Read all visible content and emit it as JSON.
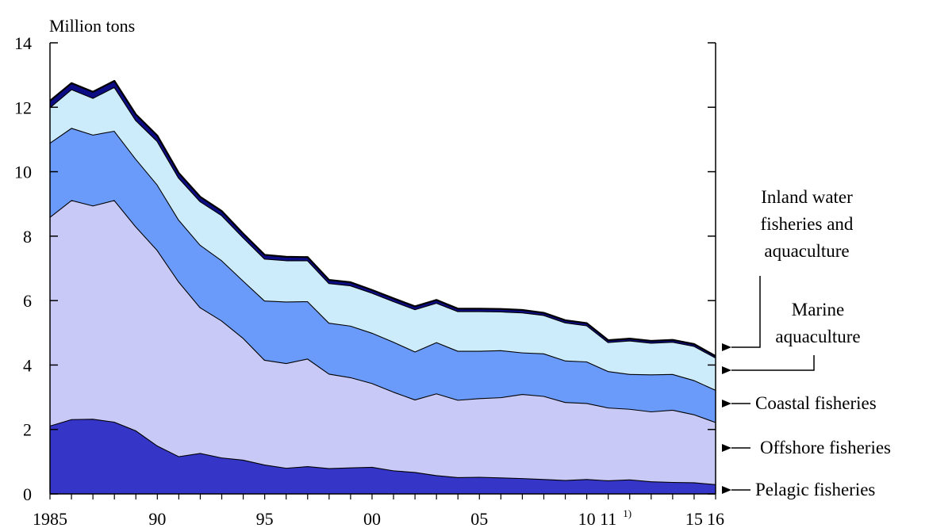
{
  "chart_data": {
    "type": "area",
    "stacked": true,
    "ylabel": "Million tons",
    "ylim": [
      0,
      14
    ],
    "yticks": [
      0,
      2,
      4,
      6,
      8,
      10,
      12,
      14
    ],
    "x": [
      1985,
      1986,
      1987,
      1988,
      1989,
      1990,
      1991,
      1992,
      1993,
      1994,
      1995,
      1996,
      1997,
      1998,
      1999,
      2000,
      2001,
      2002,
      2003,
      2004,
      2005,
      2006,
      2007,
      2008,
      2009,
      2010,
      2011,
      2012,
      2013,
      2014,
      2015,
      2016
    ],
    "xlim": [
      1985,
      2016
    ],
    "xticks": [
      {
        "x": 1985,
        "label": "1985",
        "sup": ""
      },
      {
        "x": 1990,
        "label": "90",
        "sup": ""
      },
      {
        "x": 1995,
        "label": "95",
        "sup": ""
      },
      {
        "x": 2000,
        "label": "00",
        "sup": ""
      },
      {
        "x": 2005,
        "label": "05",
        "sup": ""
      },
      {
        "x": 2010,
        "label": "10",
        "sup": ""
      },
      {
        "x": 2011,
        "label": "11",
        "sup": "1)"
      },
      {
        "x": 2015,
        "label": "15",
        "sup": ""
      },
      {
        "x": 2016,
        "label": "16",
        "sup": ""
      }
    ],
    "grid": false,
    "series": [
      {
        "name": "Pelagic fisheries",
        "color": "#3535c8",
        "values": [
          2.12,
          2.32,
          2.33,
          2.24,
          1.97,
          1.5,
          1.17,
          1.27,
          1.13,
          1.06,
          0.91,
          0.81,
          0.86,
          0.8,
          0.82,
          0.84,
          0.73,
          0.68,
          0.58,
          0.52,
          0.53,
          0.51,
          0.49,
          0.46,
          0.43,
          0.46,
          0.42,
          0.45,
          0.39,
          0.37,
          0.36,
          0.3
        ]
      },
      {
        "name": "Offshore fisheries",
        "color": "#c9c9f8",
        "values": [
          6.48,
          6.8,
          6.62,
          6.88,
          6.33,
          6.07,
          5.42,
          4.52,
          4.25,
          3.78,
          3.25,
          3.25,
          3.34,
          2.93,
          2.8,
          2.6,
          2.44,
          2.25,
          2.54,
          2.4,
          2.44,
          2.49,
          2.61,
          2.58,
          2.42,
          2.36,
          2.26,
          2.19,
          2.17,
          2.24,
          2.11,
          1.93
        ]
      },
      {
        "name": "Coastal fisheries",
        "color": "#6b9bfa",
        "values": [
          2.3,
          2.24,
          2.2,
          2.15,
          2.1,
          2.03,
          1.92,
          1.94,
          1.87,
          1.78,
          1.84,
          1.91,
          1.78,
          1.58,
          1.6,
          1.56,
          1.55,
          1.49,
          1.59,
          1.52,
          1.47,
          1.46,
          1.29,
          1.32,
          1.29,
          1.29,
          1.13,
          1.08,
          1.15,
          1.11,
          1.06,
          1.0
        ]
      },
      {
        "name": "Marine aquaculture",
        "color": "#ccecfc",
        "values": [
          1.1,
          1.2,
          1.14,
          1.36,
          1.2,
          1.35,
          1.3,
          1.35,
          1.4,
          1.34,
          1.3,
          1.28,
          1.27,
          1.23,
          1.25,
          1.24,
          1.26,
          1.31,
          1.22,
          1.23,
          1.23,
          1.2,
          1.24,
          1.19,
          1.18,
          1.12,
          0.9,
          1.04,
          0.98,
          1.0,
          1.06,
          1.0
        ]
      },
      {
        "name": "Inland water fisheries and aquaculture",
        "color": "#0c0c84",
        "values": [
          0.2,
          0.19,
          0.19,
          0.19,
          0.18,
          0.17,
          0.15,
          0.14,
          0.13,
          0.12,
          0.12,
          0.11,
          0.1,
          0.1,
          0.1,
          0.09,
          0.09,
          0.09,
          0.09,
          0.08,
          0.08,
          0.08,
          0.08,
          0.07,
          0.07,
          0.07,
          0.06,
          0.06,
          0.06,
          0.06,
          0.06,
          0.05
        ]
      }
    ]
  },
  "labels": {
    "inland_lines": [
      "Inland water",
      "fisheries and",
      "aquaculture"
    ],
    "marine_lines": [
      "Marine",
      "aquaculture"
    ],
    "coastal": "Coastal fisheries",
    "offshore": "Offshore fisheries",
    "pelagic": "Pelagic fisheries"
  }
}
